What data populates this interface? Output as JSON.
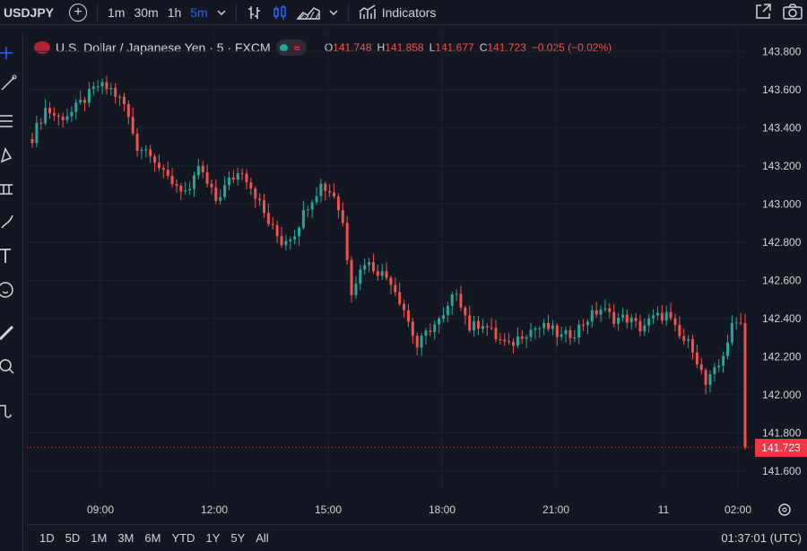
{
  "toolbar": {
    "symbol": "USDJPY",
    "intervals": [
      "1m",
      "30m",
      "1h",
      "5m"
    ],
    "active_interval": "5m",
    "indicators_label": "Indicators"
  },
  "legend": {
    "title": "U.S. Dollar / Japanese Yen · 5 · FXCM",
    "ohlc": {
      "o_label": "O",
      "o": "141.748",
      "h_label": "H",
      "h": "141.858",
      "l_label": "L",
      "l": "141.677",
      "c_label": "C",
      "c": "141.723",
      "change": "−0.025 (−0.02%)"
    },
    "wave_glyph": "≈"
  },
  "current_price_label": "141.723",
  "colors": {
    "up": "#26a69a",
    "down": "#ef5350",
    "background": "#131722",
    "grid": "#1e222d",
    "accent": "#2962ff",
    "price_tag": "#f23645"
  },
  "chart_data": {
    "type": "candlestick",
    "y_ticks": [
      "143.800",
      "143.600",
      "143.400",
      "143.200",
      "143.000",
      "142.800",
      "142.600",
      "142.400",
      "142.200",
      "142.000",
      "141.800",
      "141.600"
    ],
    "ylim": [
      141.5,
      143.9
    ],
    "x_ticks": [
      "09:00",
      "12:00",
      "15:00",
      "18:00",
      "21:00",
      "11",
      "02:00"
    ],
    "close_path": [
      [
        0,
        143.35
      ],
      [
        3,
        143.5
      ],
      [
        6,
        143.45
      ],
      [
        9,
        143.48
      ],
      [
        12,
        143.55
      ],
      [
        15,
        143.62
      ],
      [
        18,
        143.6
      ],
      [
        21,
        143.52
      ],
      [
        24,
        143.3
      ],
      [
        27,
        143.28
      ],
      [
        30,
        143.15
      ],
      [
        33,
        143.1
      ],
      [
        36,
        143.05
      ],
      [
        38,
        143.2
      ],
      [
        40,
        143.1
      ],
      [
        42,
        143.02
      ],
      [
        45,
        143.12
      ],
      [
        48,
        143.18
      ],
      [
        51,
        143.05
      ],
      [
        54,
        142.9
      ],
      [
        57,
        142.8
      ],
      [
        60,
        142.85
      ],
      [
        63,
        143.0
      ],
      [
        66,
        143.1
      ],
      [
        69,
        143.05
      ],
      [
        71,
        142.9
      ],
      [
        73,
        142.55
      ],
      [
        76,
        142.7
      ],
      [
        79,
        142.65
      ],
      [
        82,
        142.6
      ],
      [
        85,
        142.45
      ],
      [
        88,
        142.25
      ],
      [
        91,
        142.35
      ],
      [
        94,
        142.4
      ],
      [
        97,
        142.55
      ],
      [
        100,
        142.35
      ],
      [
        103,
        142.38
      ],
      [
        106,
        142.3
      ],
      [
        109,
        142.25
      ],
      [
        112,
        142.32
      ],
      [
        115,
        142.35
      ],
      [
        118,
        142.35
      ],
      [
        121,
        142.3
      ],
      [
        124,
        142.33
      ],
      [
        127,
        142.4
      ],
      [
        130,
        142.45
      ],
      [
        133,
        142.4
      ],
      [
        136,
        142.4
      ],
      [
        139,
        142.35
      ],
      [
        142,
        142.4
      ],
      [
        145,
        142.42
      ],
      [
        148,
        142.3
      ],
      [
        151,
        142.25
      ],
      [
        154,
        142.05
      ],
      [
        157,
        142.15
      ],
      [
        160,
        142.35
      ],
      [
        162,
        142.4
      ],
      [
        163,
        141.72
      ]
    ],
    "last_close": 141.723
  },
  "bottom": {
    "ranges": [
      "1D",
      "5D",
      "1M",
      "3M",
      "6M",
      "YTD",
      "1Y",
      "5Y",
      "All"
    ],
    "clock": "01:37:01 (UTC)"
  }
}
